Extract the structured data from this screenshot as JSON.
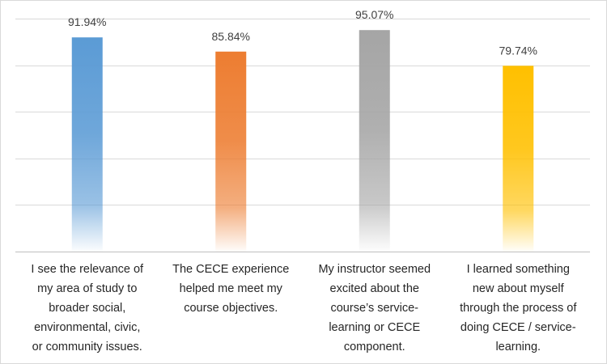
{
  "chart_data": {
    "type": "bar",
    "title": "",
    "xlabel": "",
    "ylabel": "",
    "ylim": [
      0,
      100
    ],
    "grid": true,
    "legend": "none",
    "categories": [
      [
        "I see the relevance of",
        "my area of study to",
        "broader social,",
        "environmental, civic,",
        "or community issues."
      ],
      [
        "The CECE experience",
        "helped me meet my",
        "course objectives."
      ],
      [
        "My instructor seemed",
        "excited about the",
        "course’s service-",
        "learning or CECE",
        "component."
      ],
      [
        "I learned something",
        "new about myself",
        "through the process of",
        "doing CECE / service-",
        "learning."
      ]
    ],
    "values": [
      91.94,
      85.84,
      95.07,
      79.74
    ],
    "value_labels": [
      "91.94%",
      "85.84%",
      "95.07%",
      "79.74%"
    ],
    "colors": [
      "#5b9bd5",
      "#ed7d31",
      "#a5a5a5",
      "#ffc000"
    ]
  }
}
